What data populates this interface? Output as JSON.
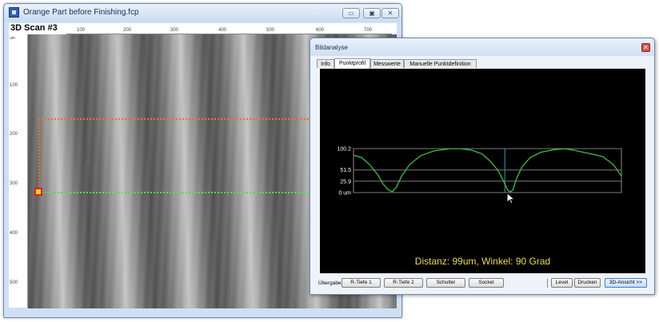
{
  "main_window": {
    "title": "Orange Part before Finishing.fcp",
    "min_label": "▭",
    "max_label": "▣",
    "close_label": "✕",
    "scan_label": "3D Scan #3",
    "x_unit": "",
    "y_unit": "um",
    "x_ticks": [
      "100",
      "200",
      "300",
      "400",
      "500",
      "600",
      "700"
    ],
    "y_ticks": [
      "100",
      "200",
      "300",
      "400",
      "500"
    ]
  },
  "dialog": {
    "title": "Bildanalyse",
    "close_label": "✕",
    "tabs": [
      {
        "label": "Info"
      },
      {
        "label": "Punktprofil"
      },
      {
        "label": "Messwerte"
      },
      {
        "label": "Manuelle Punktdefinition"
      }
    ],
    "active_tab": "Punktprofil",
    "caption": "Distanz: 99um, Winkel: 90 Grad",
    "footer": {
      "label": "Übergabe:",
      "buttons": [
        {
          "label": "R-Tiefe 1"
        },
        {
          "label": "R-Tiefe 2"
        },
        {
          "label": "Schulter"
        },
        {
          "label": "Sockel"
        },
        {
          "label": "Level"
        },
        {
          "label": "Drucken"
        },
        {
          "label": "3D-Ansicht >>"
        }
      ]
    }
  },
  "chart_data": {
    "type": "line",
    "title": "",
    "xlabel": "",
    "ylabel": "",
    "y_tick_labels": [
      "100.2",
      "51.5",
      "25.9",
      "0 um"
    ],
    "y_ticks": [
      100.2,
      51.5,
      25.9,
      0
    ],
    "ylim": [
      0,
      100.2
    ],
    "xlim": [
      0,
      100
    ],
    "grid": true,
    "series": [
      {
        "color": "#3fbf3f",
        "x": [
          0,
          3,
          6,
          9,
          11,
          13,
          14.5,
          16,
          18,
          21,
          25,
          30,
          36,
          40,
          44,
          48,
          51,
          54,
          56,
          57.5,
          58.5,
          59.5,
          61,
          63,
          66,
          70,
          75,
          79,
          82,
          85,
          89,
          93,
          97,
          100
        ],
        "y": [
          85,
          80,
          64,
          41,
          20,
          6,
          2,
          12,
          38,
          64,
          84,
          95,
          100,
          100,
          97,
          88,
          72,
          50,
          26,
          6,
          1,
          6,
          34,
          60,
          80,
          92,
          98,
          100,
          97,
          93,
          88,
          82,
          64,
          38
        ]
      }
    ],
    "cursor_x": 56.5,
    "cursor_color": "#2aa0a0"
  }
}
